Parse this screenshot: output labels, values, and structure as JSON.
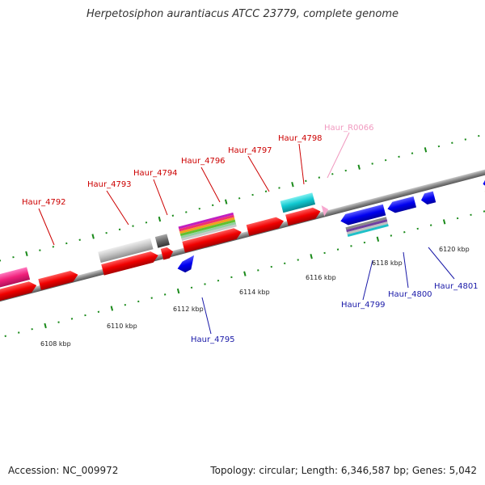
{
  "title": "Herpetosiphon aurantiacus ATCC 23779, complete genome",
  "accession": "Accession: NC_009972",
  "topology": "Topology: circular; Length: 6,346,587 bp; Genes: 5,042",
  "colors": {
    "forward_label": "#cc0000",
    "reverse_label": "#1a1aa8",
    "rna_label": "#f19ac0",
    "backbone": "#888888",
    "tick": "#1a8a1a"
  },
  "tick_labels": [
    {
      "text": "6108 kbp"
    },
    {
      "text": "6110 kbp"
    },
    {
      "text": "6112 kbp"
    },
    {
      "text": "6114 kbp"
    },
    {
      "text": "6116 kbp"
    },
    {
      "text": "6118 kbp"
    },
    {
      "text": "6120 kbp"
    }
  ],
  "gene_labels": [
    {
      "text": "Haur_4792",
      "strand": "forward"
    },
    {
      "text": "Haur_4793",
      "strand": "forward"
    },
    {
      "text": "Haur_4794",
      "strand": "forward"
    },
    {
      "text": "Haur_4796",
      "strand": "forward"
    },
    {
      "text": "Haur_4797",
      "strand": "forward"
    },
    {
      "text": "Haur_4798",
      "strand": "forward"
    },
    {
      "text": "Haur_R0066",
      "strand": "rna"
    },
    {
      "text": "Haur_4795",
      "strand": "reverse"
    },
    {
      "text": "Haur_4799",
      "strand": "reverse"
    },
    {
      "text": "Haur_4800",
      "strand": "reverse"
    },
    {
      "text": "Haur_4801",
      "strand": "reverse"
    }
  ]
}
